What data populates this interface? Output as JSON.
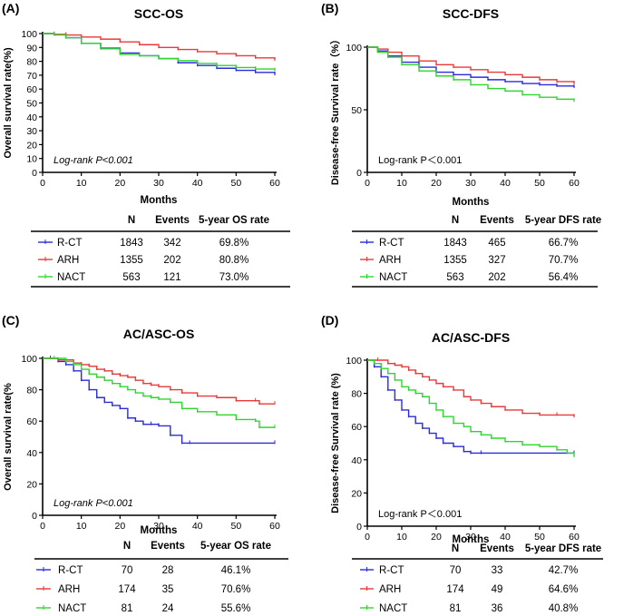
{
  "colors": {
    "rct": "#2b2bd9",
    "arh": "#e83a3a",
    "nact": "#2fd52f",
    "axis": "#000000"
  },
  "chart_data": [
    {
      "type": "line",
      "label": "(A)",
      "title": "SCC-OS",
      "xlabel": "Months",
      "ylabel": "Overall  survival rate(%)",
      "annotation": "Log-rank P<0.001",
      "annotation_italic": true,
      "xlim": [
        0,
        60
      ],
      "ylim": [
        0,
        100
      ],
      "xticks": [
        "0",
        "10",
        "20",
        "30",
        "40",
        "50",
        "60"
      ],
      "yticks": [
        "0",
        "10",
        "20",
        "30",
        "40",
        "50",
        "60",
        "70",
        "80",
        "90",
        "100"
      ],
      "series": [
        {
          "name": "R-CT",
          "key": "rct",
          "x": [
            0,
            3,
            6,
            10,
            15,
            20,
            25,
            30,
            35,
            40,
            45,
            50,
            55,
            60
          ],
          "y": [
            100,
            99.2,
            97,
            93,
            89.5,
            86,
            84,
            82,
            79,
            77,
            75,
            73.5,
            72,
            70.5
          ]
        },
        {
          "name": "ARH",
          "key": "arh",
          "x": [
            0,
            3,
            6,
            10,
            15,
            20,
            25,
            30,
            35,
            40,
            45,
            50,
            55,
            60
          ],
          "y": [
            100,
            99.5,
            99,
            97.5,
            96,
            94,
            92,
            90,
            88.5,
            87,
            85.5,
            84,
            82.5,
            81
          ]
        },
        {
          "name": "NACT",
          "key": "nact",
          "x": [
            0,
            3,
            6,
            10,
            15,
            20,
            25,
            30,
            35,
            40,
            45,
            50,
            55,
            60
          ],
          "y": [
            100,
            99,
            97,
            93,
            89,
            85,
            84,
            82,
            80.5,
            78.5,
            77,
            75.5,
            74.5,
            73.5
          ]
        }
      ],
      "table": {
        "headers": [
          "N",
          "Events",
          "5-year OS rate"
        ],
        "rows": [
          {
            "name": "R-CT",
            "key": "rct",
            "n": "1843",
            "events": "342",
            "rate": "69.8%"
          },
          {
            "name": "ARH",
            "key": "arh",
            "n": "1355",
            "events": "202",
            "rate": "80.8%"
          },
          {
            "name": "NACT",
            "key": "nact",
            "n": "563",
            "events": "121",
            "rate": "73.0%"
          }
        ]
      }
    },
    {
      "type": "line",
      "label": "(B)",
      "title": "SCC-DFS",
      "xlabel": "Months",
      "ylabel": "Disease-free Survival rate（%）",
      "annotation": "Log-rank  P＜0.001",
      "annotation_italic": false,
      "xlim": [
        0,
        60
      ],
      "ylim": [
        0,
        100
      ],
      "xticks": [
        "0",
        "10",
        "20",
        "30",
        "40",
        "50",
        "60"
      ],
      "yticks": [
        "0",
        "50",
        "100"
      ],
      "series": [
        {
          "name": "R-CT",
          "key": "rct",
          "x": [
            0,
            3,
            6,
            10,
            15,
            20,
            25,
            30,
            35,
            40,
            45,
            50,
            55,
            60
          ],
          "y": [
            100,
            97,
            93,
            88,
            84,
            80,
            78,
            76,
            74,
            72.5,
            71,
            70,
            69,
            68
          ]
        },
        {
          "name": "ARH",
          "key": "arh",
          "x": [
            0,
            3,
            6,
            10,
            15,
            20,
            25,
            30,
            35,
            40,
            45,
            50,
            55,
            60
          ],
          "y": [
            100,
            98.5,
            96,
            93,
            89,
            86,
            84,
            82,
            80,
            78,
            76,
            74,
            72.5,
            71
          ]
        },
        {
          "name": "NACT",
          "key": "nact",
          "x": [
            0,
            3,
            6,
            10,
            15,
            20,
            25,
            30,
            35,
            40,
            45,
            50,
            55,
            60
          ],
          "y": [
            100,
            96,
            92,
            86,
            81,
            77,
            74,
            70,
            67,
            65,
            62,
            60,
            58.5,
            57
          ]
        }
      ],
      "table": {
        "headers": [
          "N",
          "Events",
          "5-year DFS rate"
        ],
        "rows": [
          {
            "name": "R-CT",
            "key": "rct",
            "n": "1843",
            "events": "465",
            "rate": "66.7%"
          },
          {
            "name": "ARH",
            "key": "arh",
            "n": "1355",
            "events": "327",
            "rate": "70.7%"
          },
          {
            "name": "NACT",
            "key": "nact",
            "n": "563",
            "events": "202",
            "rate": "56.4%"
          }
        ]
      }
    },
    {
      "type": "line",
      "label": "(C)",
      "title": "AC/ASC-OS",
      "xlabel": "Months",
      "ylabel": "Overall  survival rate(%",
      "annotation": "Log-rank P<0.001",
      "annotation_italic": true,
      "xlim": [
        0,
        60
      ],
      "ylim": [
        0,
        100
      ],
      "xticks": [
        "0",
        "10",
        "20",
        "30",
        "40",
        "50",
        "60"
      ],
      "yticks": [
        "0",
        "20",
        "40",
        "60",
        "80",
        "100"
      ],
      "series": [
        {
          "name": "R-CT",
          "key": "rct",
          "x": [
            0,
            2,
            4,
            6,
            8,
            10,
            12,
            14,
            16,
            18,
            20,
            22,
            24,
            26,
            28,
            30,
            33,
            36,
            38,
            60
          ],
          "y": [
            100,
            100,
            98,
            96,
            92,
            86,
            80,
            75,
            72,
            70,
            68,
            62,
            60,
            58,
            58,
            57,
            51,
            46,
            46,
            46
          ]
        },
        {
          "name": "ARH",
          "key": "arh",
          "x": [
            0,
            4,
            8,
            10,
            12,
            14,
            16,
            18,
            20,
            22,
            24,
            26,
            28,
            30,
            33,
            36,
            40,
            45,
            50,
            55,
            56,
            60
          ],
          "y": [
            100,
            99,
            97,
            96,
            95,
            93,
            92,
            90,
            89,
            88,
            86,
            84,
            83,
            82,
            80,
            78,
            76,
            75,
            73,
            73,
            71,
            71
          ]
        },
        {
          "name": "NACT",
          "key": "nact",
          "x": [
            0,
            3,
            6,
            8,
            10,
            12,
            14,
            16,
            18,
            20,
            22,
            24,
            26,
            28,
            30,
            33,
            36,
            40,
            45,
            50,
            55,
            56,
            60
          ],
          "y": [
            100,
            100,
            98,
            96,
            93,
            90,
            88,
            86,
            84,
            82,
            80,
            78,
            76,
            75,
            74,
            72,
            68,
            66,
            64,
            61,
            60,
            56,
            56
          ]
        }
      ],
      "table": {
        "headers": [
          "N",
          "Events",
          "5-year OS rate"
        ],
        "rows": [
          {
            "name": "R-CT",
            "key": "rct",
            "n": "70",
            "events": "28",
            "rate": "46.1%"
          },
          {
            "name": "ARH",
            "key": "arh",
            "n": "174",
            "events": "35",
            "rate": "70.6%"
          },
          {
            "name": "NACT",
            "key": "nact",
            "n": "81",
            "events": "24",
            "rate": "55.6%"
          }
        ]
      }
    },
    {
      "type": "line",
      "label": "(D)",
      "title": "AC/ASC-DFS",
      "xlabel": "Months",
      "ylabel": "Disease-free Survival rate (%)",
      "annotation": "Log-rank  P＜0.001",
      "annotation_italic": false,
      "xlim": [
        0,
        60
      ],
      "ylim": [
        0,
        100
      ],
      "xticks": [
        "0",
        "10",
        "20",
        "30",
        "40",
        "50",
        "60"
      ],
      "yticks": [
        "0",
        "20",
        "40",
        "60",
        "80",
        "100"
      ],
      "series": [
        {
          "name": "R-CT",
          "key": "rct",
          "x": [
            0,
            2,
            4,
            6,
            8,
            10,
            12,
            14,
            16,
            18,
            20,
            22,
            25,
            28,
            30,
            33,
            60
          ],
          "y": [
            100,
            96,
            90,
            82,
            76,
            70,
            66,
            62,
            59,
            56,
            53,
            50,
            48,
            45,
            44,
            44,
            44
          ]
        },
        {
          "name": "ARH",
          "key": "arh",
          "x": [
            0,
            3,
            6,
            8,
            10,
            12,
            14,
            16,
            18,
            20,
            22,
            25,
            28,
            30,
            33,
            36,
            40,
            45,
            50,
            55,
            60
          ],
          "y": [
            100,
            100,
            98,
            97,
            96,
            94,
            92,
            90,
            88,
            86,
            84,
            82,
            78,
            76,
            74,
            72,
            70,
            68,
            67,
            67,
            66
          ]
        },
        {
          "name": "NACT",
          "key": "nact",
          "x": [
            0,
            2,
            4,
            6,
            8,
            10,
            12,
            14,
            16,
            18,
            20,
            22,
            25,
            28,
            30,
            33,
            36,
            40,
            45,
            50,
            55,
            58,
            60
          ],
          "y": [
            100,
            98,
            95,
            92,
            88,
            84,
            82,
            80,
            78,
            74,
            70,
            66,
            62,
            60,
            57,
            55,
            53,
            51,
            49,
            48,
            46,
            44,
            42
          ]
        }
      ],
      "table": {
        "headers": [
          "N",
          "Events",
          "5-year DFS rate"
        ],
        "rows": [
          {
            "name": "R-CT",
            "key": "rct",
            "n": "70",
            "events": "33",
            "rate": "42.7%"
          },
          {
            "name": "ARH",
            "key": "arh",
            "n": "174",
            "events": "49",
            "rate": "64.6%"
          },
          {
            "name": "NACT",
            "key": "nact",
            "n": "81",
            "events": "36",
            "rate": "40.8%"
          }
        ]
      }
    }
  ]
}
